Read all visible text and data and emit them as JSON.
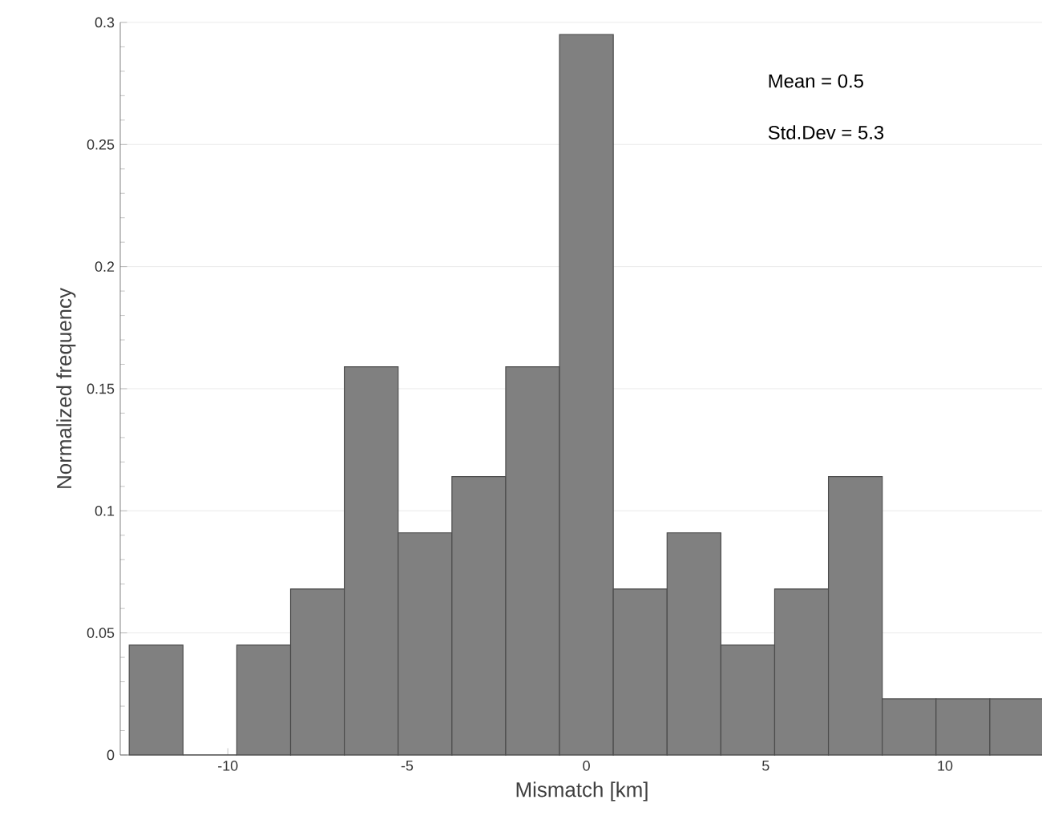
{
  "chart_data": {
    "type": "histogram",
    "xlabel": "Mismatch [km]",
    "ylabel": "Normalized frequency",
    "bins": [
      -12.75,
      -11.25,
      -9.75,
      -8.25,
      -6.75,
      -5.25,
      -3.75,
      -2.25,
      -0.75,
      0.75,
      2.25,
      3.75,
      5.25,
      6.75,
      8.25,
      9.75,
      11.25,
      12.75
    ],
    "values": [
      0.045,
      0,
      0.045,
      0.068,
      0.159,
      0.091,
      0.114,
      0.159,
      0.295,
      0.068,
      0.091,
      0.045,
      0.068,
      0.114,
      0.023,
      0.023,
      0.023
    ],
    "color": "#808080",
    "xlim": [
      -13,
      12.75
    ],
    "ylim": [
      0,
      0.3
    ],
    "xticks": [
      -10,
      -5,
      0,
      5,
      10
    ],
    "yticks": [
      0,
      0.05,
      0.1,
      0.15,
      0.2,
      0.25,
      0.3
    ],
    "grid": "y",
    "annotations": [
      "Mean = 0.5",
      "Std.Dev = 5.3"
    ]
  }
}
